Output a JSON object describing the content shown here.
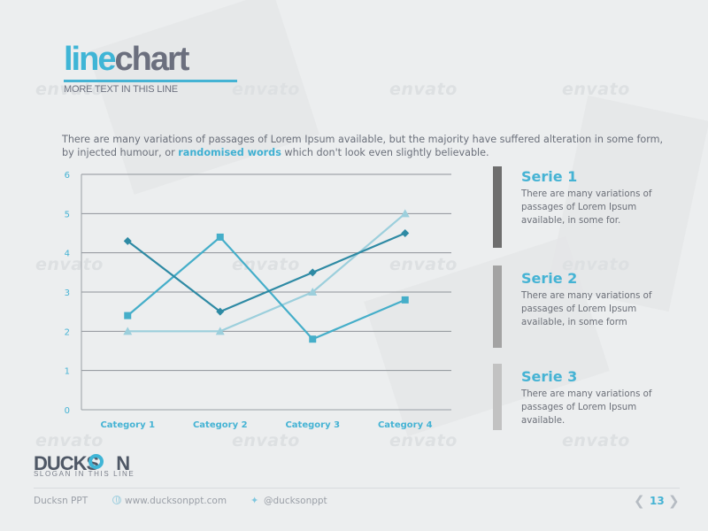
{
  "slide": {
    "title_part1": "line",
    "title_part2": "chart",
    "subtitle": "MORE TEXT IN THIS LINE",
    "intro_before": "There are many variations of passages of Lorem Ipsum available, but the majority have suffered alteration in some form, by injected humour, or ",
    "intro_highlight": "randomised words",
    "intro_after": " which don't look even slightly believable.",
    "watermark": "envato"
  },
  "chart_data": {
    "type": "line",
    "categories": [
      "Category 1",
      "Category 2",
      "Category 3",
      "Category 4"
    ],
    "ylim": [
      0,
      6
    ],
    "yticks": [
      0,
      1,
      2,
      3,
      4,
      5,
      6
    ],
    "grid": true,
    "series": [
      {
        "name": "Serie 1",
        "values": [
          4.3,
          2.5,
          3.5,
          4.5
        ],
        "color": "#2e8aa4",
        "marker": "diamond"
      },
      {
        "name": "Serie 2",
        "values": [
          2.4,
          4.4,
          1.8,
          2.8
        ],
        "color": "#45aec9",
        "marker": "square"
      },
      {
        "name": "Serie 3",
        "values": [
          2.0,
          2.0,
          3.0,
          5.0
        ],
        "color": "#9ccfdc",
        "marker": "triangle"
      }
    ]
  },
  "legend": [
    {
      "title": "Serie 1",
      "text": "There are many variations of passages of Lorem Ipsum available, in some for.",
      "bar_color": "#6e6e6e"
    },
    {
      "title": "Serie 2",
      "text": "There are many variations of passages of Lorem Ipsum available, in some form",
      "bar_color": "#a3a3a3"
    },
    {
      "title": "Serie 3",
      "text": "There are many variations of passages of Lorem Ipsum available.",
      "bar_color": "#c2c2c2"
    }
  ],
  "brand": {
    "logo_part1": "DUCKS",
    "logo_part2": "N",
    "slogan": "SLOGAN IN THIS LINE"
  },
  "footer": {
    "company": "Ducksn PPT",
    "website": "www.ducksonppt.com",
    "twitter": "@ducksonppt",
    "page": "13"
  },
  "colors": {
    "accent": "#45b3d4",
    "title_dark": "#6b6f7e"
  }
}
